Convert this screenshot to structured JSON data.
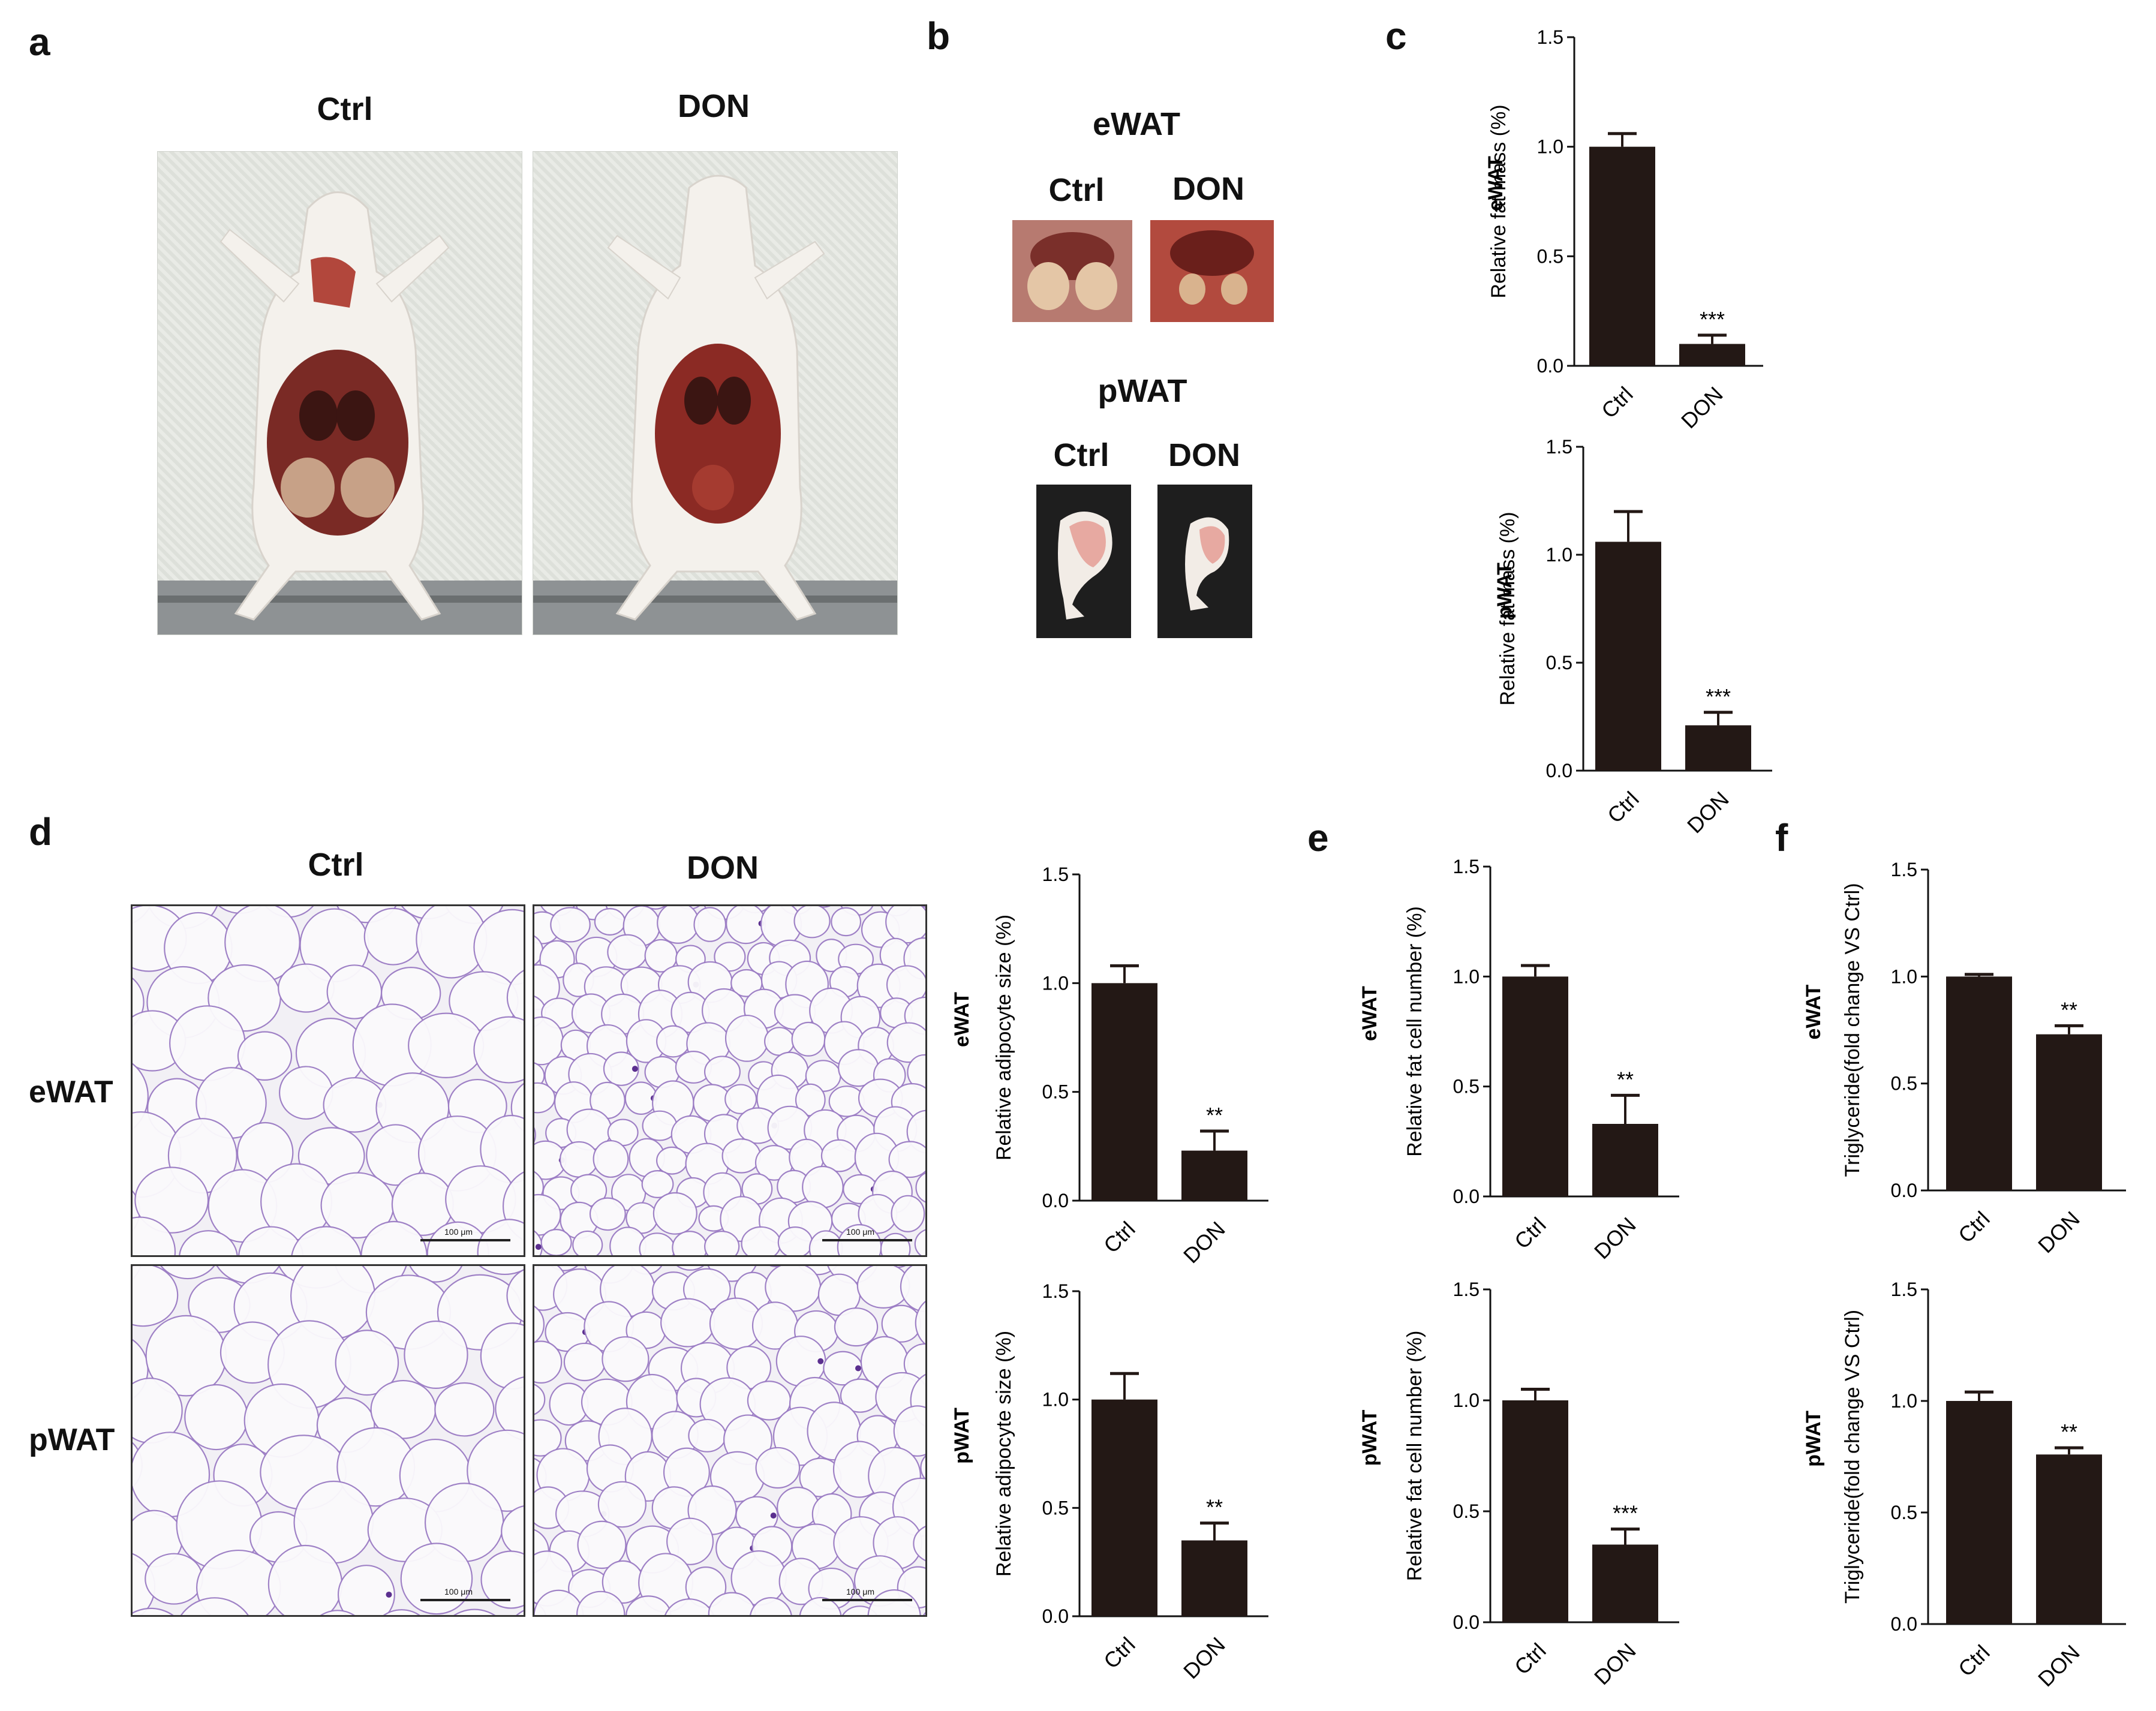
{
  "panels": {
    "a": {
      "letter": "a",
      "labels": [
        "Ctrl",
        "DON"
      ]
    },
    "b": {
      "letter": "b",
      "ewat_title": "eWAT",
      "pwat_title": "pWAT",
      "ewat_labels": [
        "Ctrl",
        "DON"
      ],
      "pwat_labels": [
        "Ctrl",
        "DON"
      ]
    },
    "c": {
      "letter": "c"
    },
    "d": {
      "letter": "d",
      "col_labels": [
        "Ctrl",
        "DON"
      ],
      "row_labels": [
        "eWAT",
        "pWAT"
      ],
      "scale_bar": "100 μm"
    },
    "e": {
      "letter": "e"
    },
    "f": {
      "letter": "f"
    }
  },
  "colors": {
    "bar": "#231815",
    "mouse_fur": "#f4f1ec",
    "viscera": "#8b2a24",
    "fat_pad": "#e7a9a1",
    "membrane": "#9b7cc4"
  },
  "chart_data": [
    {
      "id": "c-ewat",
      "type": "bar",
      "panel": "c",
      "side_label": "eWAT",
      "ylabel": "Relative fat mass (%)",
      "ylim": [
        0,
        1.5
      ],
      "yticks": [
        "0.0",
        "0.5",
        "1.0",
        "1.5"
      ],
      "categories": [
        "Ctrl",
        "DON"
      ],
      "values": [
        1.0,
        0.1
      ],
      "errors": [
        0.06,
        0.04
      ],
      "annotations": [
        "",
        "***"
      ]
    },
    {
      "id": "c-pwat",
      "type": "bar",
      "panel": "c",
      "side_label": "pWAT",
      "ylabel": "Relative fat mass (%)",
      "ylim": [
        0,
        1.5
      ],
      "yticks": [
        "0.0",
        "0.5",
        "1.0",
        "1.5"
      ],
      "categories": [
        "Ctrl",
        "DON"
      ],
      "values": [
        1.06,
        0.21
      ],
      "errors": [
        0.14,
        0.06
      ],
      "annotations": [
        "",
        "***"
      ]
    },
    {
      "id": "d-ewat",
      "type": "bar",
      "panel": "d",
      "side_label": "eWAT",
      "ylabel": "Relative adipocyte size (%)",
      "ylim": [
        0,
        1.5
      ],
      "yticks": [
        "0.0",
        "0.5",
        "1.0",
        "1.5"
      ],
      "categories": [
        "Ctrl",
        "DON"
      ],
      "values": [
        1.0,
        0.23
      ],
      "errors": [
        0.08,
        0.09
      ],
      "annotations": [
        "",
        "**"
      ]
    },
    {
      "id": "d-pwat",
      "type": "bar",
      "panel": "d",
      "side_label": "pWAT",
      "ylabel": "Relative adipocyte size (%)",
      "ylim": [
        0,
        1.5
      ],
      "yticks": [
        "0.0",
        "0.5",
        "1.0",
        "1.5"
      ],
      "categories": [
        "Ctrl",
        "DON"
      ],
      "values": [
        1.0,
        0.35
      ],
      "errors": [
        0.12,
        0.08
      ],
      "annotations": [
        "",
        "**"
      ]
    },
    {
      "id": "e-ewat",
      "type": "bar",
      "panel": "e",
      "side_label": "eWAT",
      "ylabel": "Relative fat cell number (%)",
      "ylim": [
        0,
        1.5
      ],
      "yticks": [
        "0.0",
        "0.5",
        "1.0",
        "1.5"
      ],
      "categories": [
        "Ctrl",
        "DON"
      ],
      "values": [
        1.0,
        0.33
      ],
      "errors": [
        0.05,
        0.13
      ],
      "annotations": [
        "",
        "**"
      ]
    },
    {
      "id": "e-pwat",
      "type": "bar",
      "panel": "e",
      "side_label": "pWAT",
      "ylabel": "Relative fat cell number (%)",
      "ylim": [
        0,
        1.5
      ],
      "yticks": [
        "0.0",
        "0.5",
        "1.0",
        "1.5"
      ],
      "categories": [
        "Ctrl",
        "DON"
      ],
      "values": [
        1.0,
        0.35
      ],
      "errors": [
        0.05,
        0.07
      ],
      "annotations": [
        "",
        "***"
      ]
    },
    {
      "id": "f-ewat",
      "type": "bar",
      "panel": "f",
      "side_label": "eWAT",
      "ylabel": "Triglyceride(fold change VS Ctrl)",
      "ylim": [
        0,
        1.5
      ],
      "yticks": [
        "0.0",
        "0.5",
        "1.0",
        "1.5"
      ],
      "categories": [
        "Ctrl",
        "DON"
      ],
      "values": [
        1.0,
        0.73
      ],
      "errors": [
        0.01,
        0.04
      ],
      "annotations": [
        "",
        "**"
      ]
    },
    {
      "id": "f-pwat",
      "type": "bar",
      "panel": "f",
      "side_label": "pWAT",
      "ylabel": "Triglyceride(fold change VS Ctrl)",
      "ylim": [
        0,
        1.5
      ],
      "yticks": [
        "0.0",
        "0.5",
        "1.0",
        "1.5"
      ],
      "categories": [
        "Ctrl",
        "DON"
      ],
      "values": [
        1.0,
        0.76
      ],
      "errors": [
        0.04,
        0.03
      ],
      "annotations": [
        "",
        "**"
      ]
    }
  ]
}
